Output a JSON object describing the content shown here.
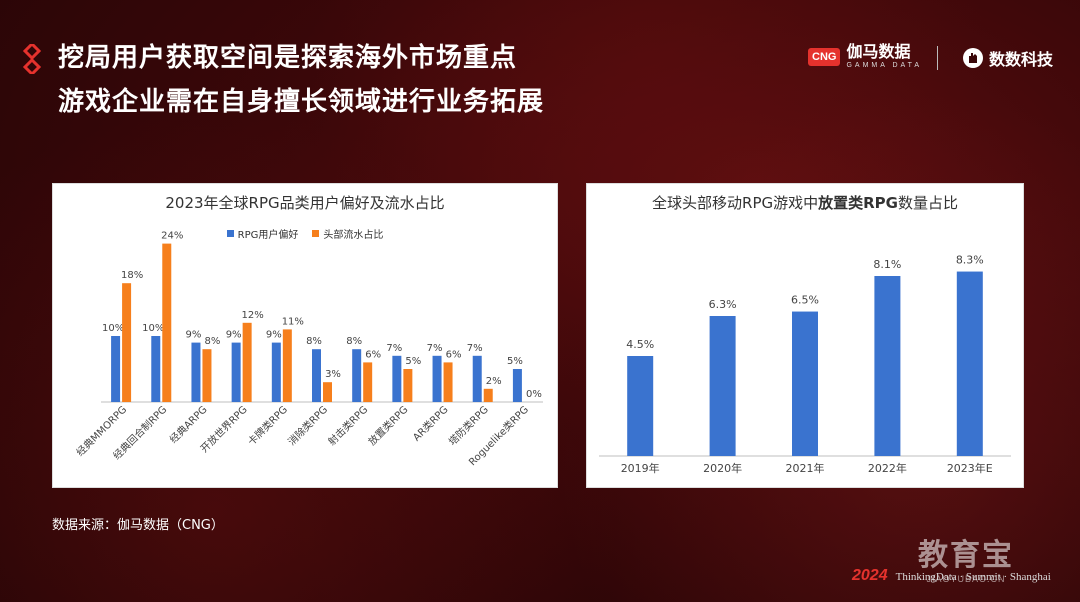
{
  "header": {
    "title_line1": "挖局用户获取空间是探索海外市场重点",
    "title_line2": "游戏企业需在自身擅长领域进行业务拓展"
  },
  "logos": {
    "cng_box": "CNG",
    "cng_name": "伽马数据",
    "cng_sub": "GAMMA DATA",
    "td_name": "数数科技"
  },
  "source": "数据来源：伽马数据（CNG）",
  "watermark": {
    "big": "教育宝",
    "small": "JIAOYUBAO.CN"
  },
  "footer": {
    "year": "2024",
    "text": "ThinkingData · Summit · Shanghai"
  },
  "colors": {
    "blue": "#3a73cf",
    "orange": "#f67f1c",
    "accent": "#e5322d"
  },
  "chart_data": [
    {
      "type": "bar",
      "title": "2023年全球RPG品类用户偏好及流水占比",
      "legend_position": "top",
      "categories": [
        "经典MMORPG",
        "经典回合制RPG",
        "经典ARPG",
        "开放世界RPG",
        "卡牌类RPG",
        "消除类RPG",
        "射击类RPG",
        "放置类RPG",
        "AR类RPG",
        "塔防类RPG",
        "Roguelike类RPG"
      ],
      "series": [
        {
          "name": "RPG用户偏好",
          "values": [
            10,
            10,
            9,
            9,
            9,
            8,
            8,
            7,
            7,
            7,
            5
          ],
          "labels": [
            "10%",
            "10%",
            "9%",
            "9%",
            "9%",
            "8%",
            "8%",
            "7%",
            "7%",
            "7%",
            "5%"
          ]
        },
        {
          "name": "头部流水占比",
          "values": [
            18,
            24,
            8,
            12,
            11,
            3,
            6,
            5,
            6,
            2,
            0
          ],
          "labels": [
            "18%",
            "24%",
            "8%",
            "12%",
            "11%",
            "3%",
            "6%",
            "5%",
            "6%",
            "2%",
            "0%"
          ]
        }
      ],
      "ylim": [
        0,
        25
      ]
    },
    {
      "type": "bar",
      "title_pre": "全球头部移动RPG游戏中",
      "title_bold": "放置类RPG",
      "title_post": "数量占比",
      "categories": [
        "2019年",
        "2020年",
        "2021年",
        "2022年",
        "2023年E"
      ],
      "values": [
        4.5,
        6.3,
        6.5,
        8.1,
        8.3
      ],
      "labels": [
        "4.5%",
        "6.3%",
        "6.5%",
        "8.1%",
        "8.3%"
      ],
      "ylim": [
        0,
        9
      ]
    }
  ]
}
